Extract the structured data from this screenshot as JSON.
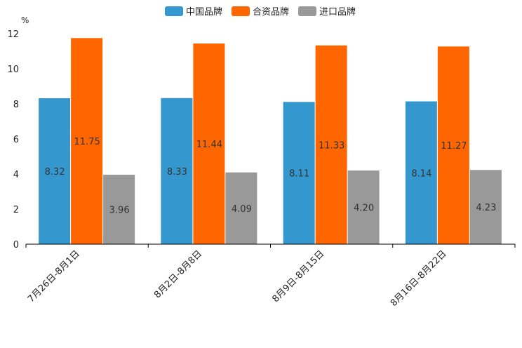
{
  "chart_data": {
    "type": "bar",
    "unit": "%",
    "ylim": [
      0,
      12
    ],
    "yticks": [
      0,
      2,
      4,
      6,
      8,
      10,
      12
    ],
    "grid": false,
    "legend_position": "top-center",
    "categories": [
      "7月26日-8月1日",
      "8月2日-8月8日",
      "8月9日-8月15日",
      "8月16日-8月22日"
    ],
    "series": [
      {
        "name": "中国品牌",
        "color": "#3498cf",
        "values": [
          8.32,
          8.33,
          8.11,
          8.14
        ]
      },
      {
        "name": "合资品牌",
        "color": "#ff6600",
        "values": [
          11.75,
          11.44,
          11.33,
          11.27
        ]
      },
      {
        "name": "进口品牌",
        "color": "#999999",
        "values": [
          3.96,
          4.09,
          4.2,
          4.23
        ]
      }
    ]
  }
}
